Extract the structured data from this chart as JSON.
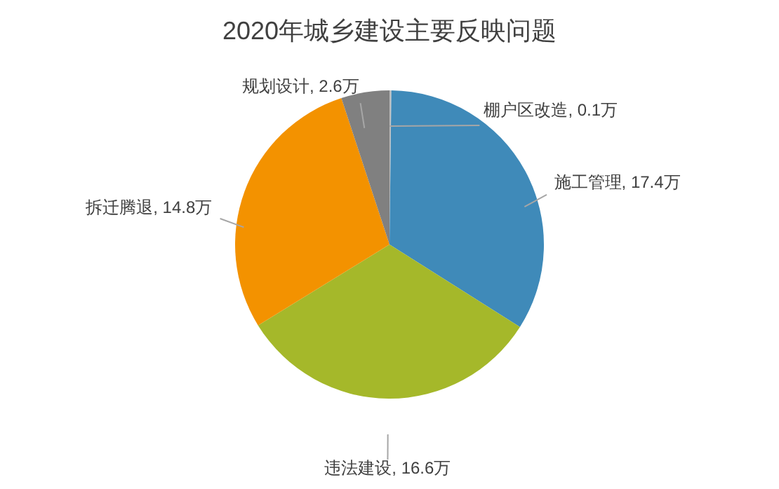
{
  "chart_data": {
    "type": "pie",
    "title": "2020年城乡建设主要反映问题",
    "categories": [
      "棚户区改造",
      "施工管理",
      "违法建设",
      "拆迁腾退",
      "规划设计"
    ],
    "values": [
      0.1,
      17.4,
      16.6,
      14.8,
      2.6
    ],
    "value_labels": [
      "0.1万",
      "17.4万",
      "16.6万",
      "14.8万",
      "2.6万"
    ],
    "colors": [
      "#bfbfbf",
      "#3f8ab9",
      "#a5b82a",
      "#f39200",
      "#808080"
    ],
    "legend": false
  }
}
